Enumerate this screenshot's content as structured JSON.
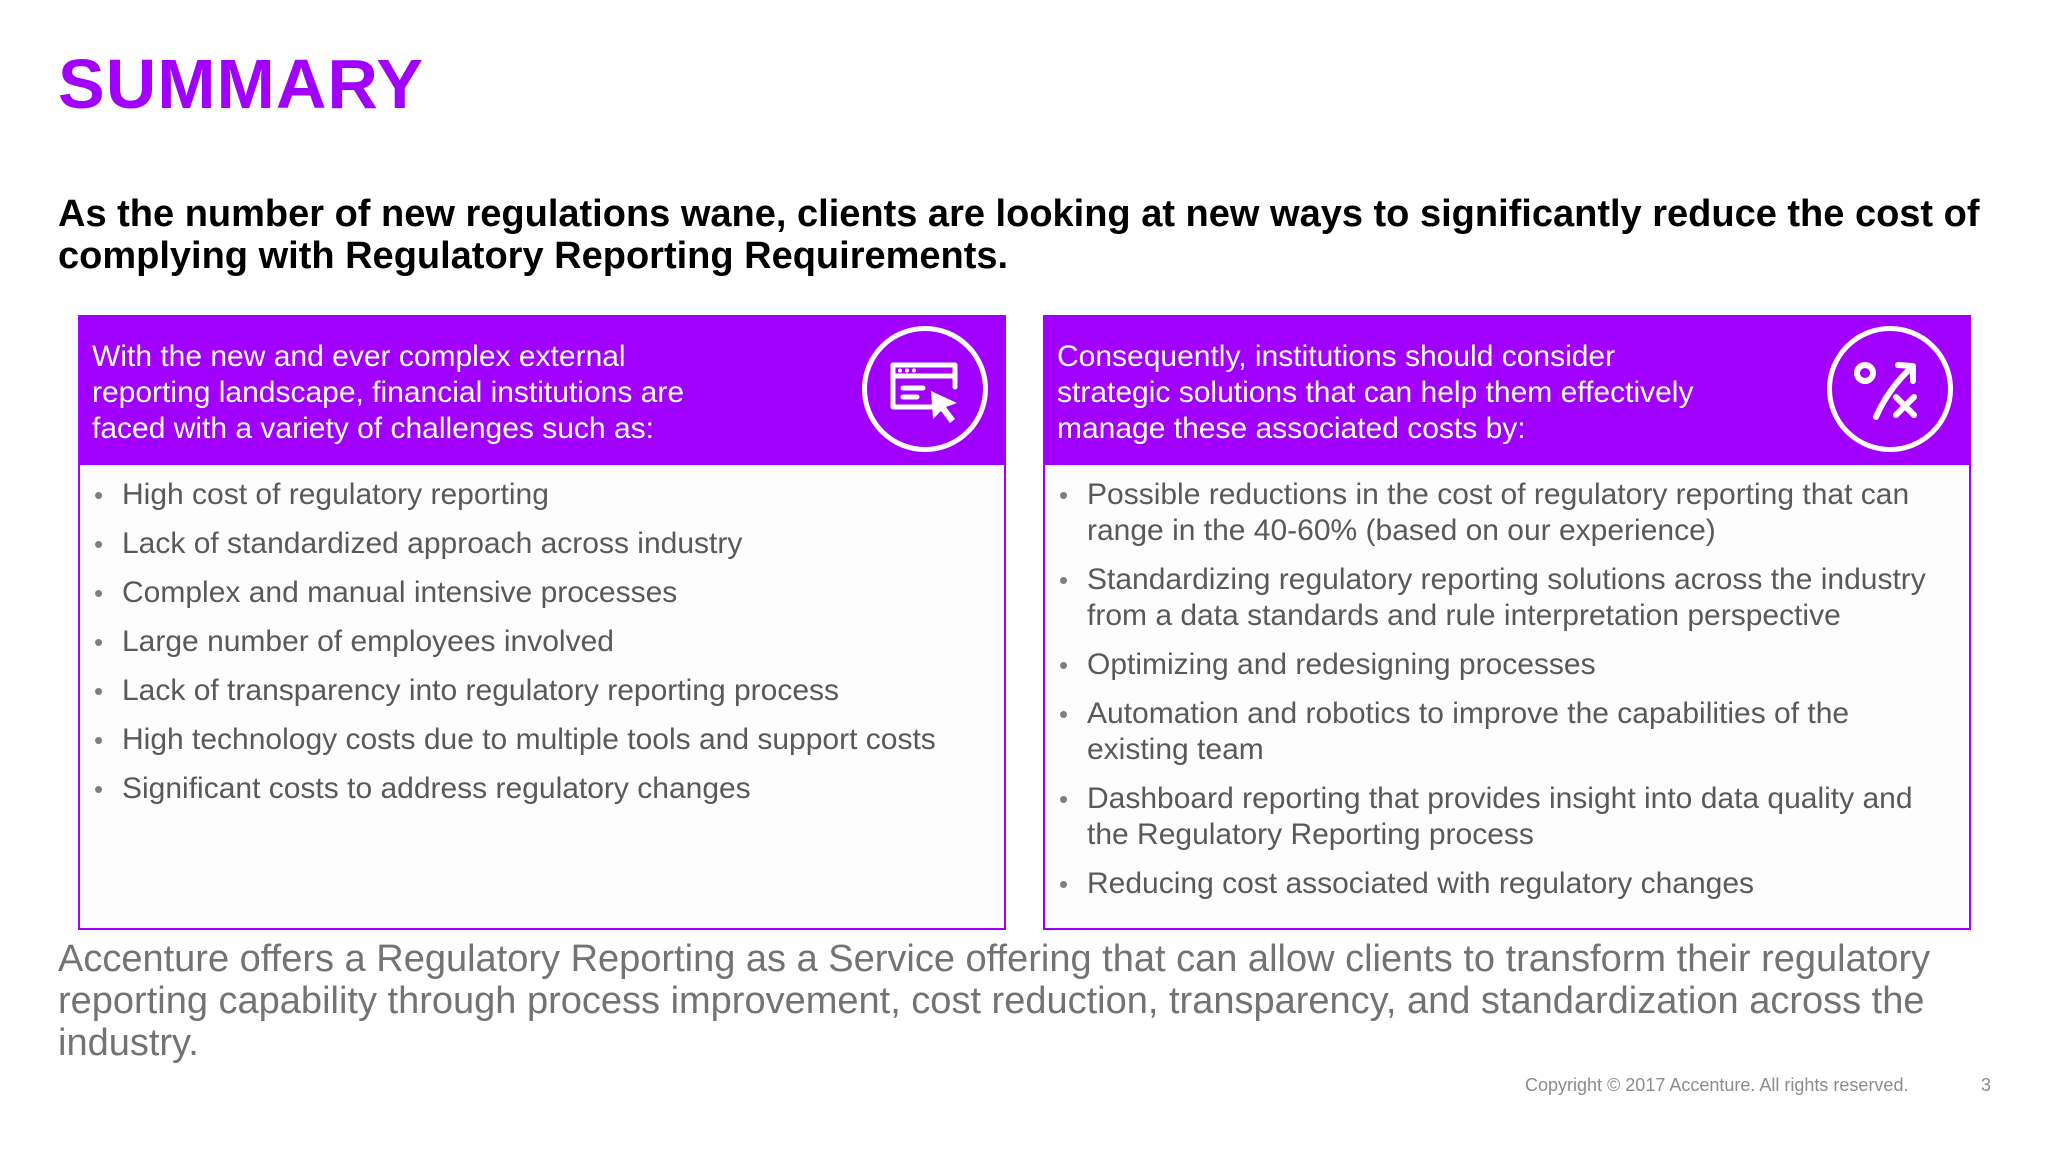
{
  "title": "SUMMARY",
  "subtitle": "As the number of new regulations wane, clients are looking at new ways to significantly reduce the cost of complying with Regulatory Reporting Requirements.",
  "left_panel": {
    "header": "With the new and ever complex external reporting landscape, financial institutions are faced with a variety of challenges such as:",
    "icon": "web-browser-cursor-icon",
    "items": [
      "High cost of regulatory reporting",
      "Lack of standardized approach across industry",
      "Complex and manual intensive processes",
      "Large number of employees involved",
      "Lack of transparency into regulatory reporting process",
      "High technology costs due to multiple tools and support costs",
      "Significant costs to address regulatory changes"
    ]
  },
  "right_panel": {
    "header": "Consequently, institutions should consider strategic solutions that can help them effectively manage these associated costs by:",
    "icon": "strategy-play-icon",
    "items": [
      "Possible reductions in the cost of regulatory reporting that can range in the 40-60% (based on our experience)",
      "Standardizing regulatory reporting solutions across the industry from a data standards and rule interpretation perspective",
      "Optimizing and redesigning processes",
      "Automation and robotics to improve the capabilities of the existing team",
      "Dashboard reporting that provides insight into data quality and the Regulatory Reporting process",
      "Reducing cost associated with regulatory changes"
    ]
  },
  "closing": "Accenture offers a Regulatory Reporting as a Service offering that can allow clients to transform their regulatory reporting capability through process improvement, cost reduction, transparency, and standardization across the industry.",
  "footer": {
    "copyright": "Copyright © 2017 Accenture. All rights reserved.",
    "page": "3"
  },
  "colors": {
    "accent": "#a100ff",
    "heading": "#000000",
    "body_text": "#595959",
    "closing_text": "#737373"
  }
}
